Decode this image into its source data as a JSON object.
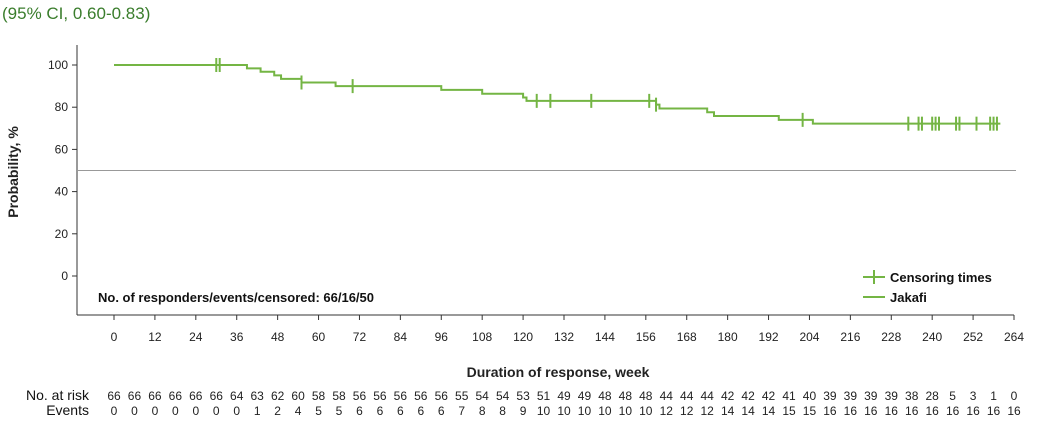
{
  "header_text": "(95% CI, 0.60-0.83)",
  "colors": {
    "series": "#74b544",
    "reference_line": "#999999",
    "axis": "#333333",
    "header": "#3a7d2c"
  },
  "chart_data": {
    "type": "line",
    "step": true,
    "xlabel": "Duration of response, week",
    "ylabel": "Probability, %",
    "xlim": [
      0,
      264
    ],
    "ylim": [
      0,
      100
    ],
    "x_ticks": [
      0,
      12,
      24,
      36,
      48,
      60,
      72,
      84,
      96,
      108,
      120,
      132,
      144,
      156,
      168,
      180,
      192,
      204,
      216,
      228,
      240,
      252,
      264
    ],
    "y_ticks": [
      0,
      20,
      40,
      60,
      80,
      100
    ],
    "reference_line_y": 50,
    "annotation": "No. of responders/events/censored: 66/16/50",
    "legend": {
      "position": "bottom-right",
      "censor_label": "Censoring times",
      "series_label": "Jakafi"
    },
    "series": [
      {
        "name": "Jakafi",
        "steps": [
          [
            0,
            100
          ],
          [
            39,
            98.4
          ],
          [
            43,
            96.8
          ],
          [
            47,
            95.1
          ],
          [
            49,
            93.4
          ],
          [
            55,
            91.7
          ],
          [
            65,
            90.0
          ],
          [
            71,
            90.0
          ],
          [
            96,
            88.2
          ],
          [
            108,
            86.4
          ],
          [
            120,
            84.6
          ],
          [
            121,
            83.0
          ],
          [
            159,
            81.2
          ],
          [
            160,
            79.4
          ],
          [
            174,
            77.6
          ],
          [
            176,
            75.8
          ],
          [
            195,
            74.0
          ],
          [
            205,
            72.2
          ],
          [
            260,
            72.2
          ]
        ],
        "censored": [
          30,
          31,
          55,
          70,
          124,
          128,
          140,
          157,
          159,
          202,
          233,
          236,
          237,
          240,
          241,
          242,
          247,
          248,
          253,
          257,
          258,
          259
        ]
      }
    ],
    "risk_table": {
      "label_at_risk": "No. at risk",
      "label_events": "Events",
      "x": [
        0,
        6,
        12,
        18,
        24,
        30,
        36,
        42,
        48,
        54,
        60,
        66,
        72,
        78,
        84,
        90,
        96,
        102,
        108,
        114,
        120,
        126,
        132,
        138,
        144,
        150,
        156,
        162,
        168,
        174,
        180,
        186,
        192,
        198,
        204,
        210,
        216,
        222,
        228,
        234,
        240,
        246,
        252,
        258,
        264
      ],
      "at_risk": [
        "66",
        "66",
        "66",
        "66",
        "66",
        "66",
        "64",
        "63",
        "62",
        "60",
        "58",
        "58",
        "56",
        "56",
        "56",
        "56",
        "56",
        "55",
        "54",
        "54",
        "53",
        "51",
        "49",
        "49",
        "48",
        "48",
        "48",
        "44",
        "44",
        "44",
        "42",
        "42",
        "42",
        "41",
        "40",
        "39",
        "39",
        "39",
        "39",
        "38",
        "28",
        "5",
        "3",
        "1",
        "0"
      ],
      "events": [
        "0",
        "0",
        "0",
        "0",
        "0",
        "0",
        "0",
        "1",
        "2",
        "4",
        "5",
        "5",
        "6",
        "6",
        "6",
        "6",
        "6",
        "7",
        "8",
        "8",
        "9",
        "10",
        "10",
        "10",
        "10",
        "10",
        "10",
        "12",
        "12",
        "12",
        "14",
        "14",
        "14",
        "15",
        "15",
        "16",
        "16",
        "16",
        "16",
        "16",
        "16",
        "16",
        "16",
        "16",
        "16"
      ]
    }
  }
}
